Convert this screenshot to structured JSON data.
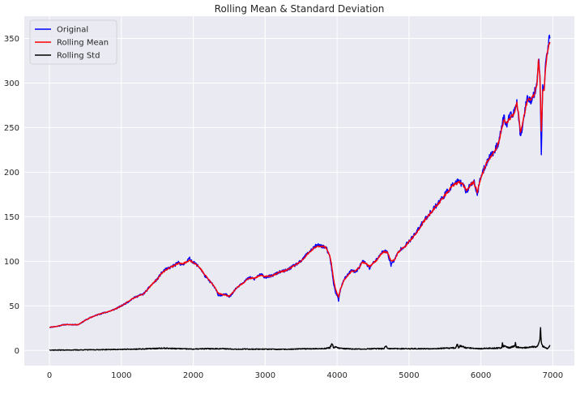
{
  "chart_data": {
    "type": "line",
    "title": "Rolling Mean & Standard Deviation",
    "xlabel": "",
    "ylabel": "",
    "xlim": [
      -350,
      7300
    ],
    "ylim": [
      -17,
      375
    ],
    "xticks": [
      0,
      1000,
      2000,
      3000,
      4000,
      5000,
      6000,
      7000
    ],
    "yticks": [
      0,
      50,
      100,
      150,
      200,
      250,
      300,
      350
    ],
    "grid": true,
    "legend_position": "top-left",
    "colors": {
      "plot_bg": "#eaeaf2",
      "grid": "#ffffff",
      "text": "#262626"
    },
    "series": [
      {
        "name": "Original",
        "color": "#0000ff",
        "x": [
          0,
          100,
          200,
          300,
          400,
          500,
          600,
          700,
          800,
          900,
          1000,
          1100,
          1150,
          1200,
          1250,
          1300,
          1350,
          1400,
          1450,
          1500,
          1550,
          1600,
          1650,
          1700,
          1750,
          1800,
          1850,
          1900,
          1950,
          2000,
          2050,
          2100,
          2150,
          2200,
          2250,
          2300,
          2350,
          2400,
          2450,
          2500,
          2550,
          2600,
          2650,
          2700,
          2750,
          2800,
          2850,
          2900,
          2950,
          3000,
          3100,
          3200,
          3300,
          3400,
          3500,
          3600,
          3700,
          3750,
          3800,
          3850,
          3900,
          3920,
          3950,
          3980,
          4000,
          4020,
          4050,
          4100,
          4150,
          4200,
          4250,
          4300,
          4350,
          4400,
          4450,
          4500,
          4550,
          4600,
          4650,
          4700,
          4750,
          4800,
          4850,
          4900,
          4950,
          5000,
          5100,
          5200,
          5300,
          5400,
          5500,
          5550,
          5600,
          5650,
          5700,
          5750,
          5800,
          5850,
          5900,
          5950,
          6000,
          6050,
          6100,
          6150,
          6200,
          6250,
          6300,
          6320,
          6350,
          6400,
          6450,
          6500,
          6520,
          6550,
          6600,
          6650,
          6700,
          6750,
          6780,
          6800,
          6820,
          6840,
          6860,
          6880,
          6900,
          6920,
          6940,
          6960
        ],
        "y": [
          26,
          27,
          29,
          29,
          29,
          34,
          38,
          41,
          43,
          46,
          50,
          55,
          58,
          60,
          62,
          63,
          67,
          72,
          76,
          80,
          86,
          90,
          92,
          94,
          96,
          99,
          95,
          100,
          103,
          99,
          96,
          92,
          85,
          80,
          76,
          70,
          62,
          62,
          63,
          60,
          65,
          70,
          74,
          77,
          80,
          82,
          80,
          84,
          85,
          82,
          84,
          88,
          90,
          95,
          100,
          110,
          117,
          118,
          117,
          115,
          104,
          95,
          75,
          65,
          62,
          56,
          70,
          80,
          85,
          90,
          88,
          92,
          100,
          98,
          92,
          98,
          102,
          108,
          112,
          110,
          96,
          102,
          110,
          115,
          118,
          122,
          132,
          145,
          155,
          165,
          175,
          180,
          185,
          188,
          190,
          185,
          178,
          186,
          190,
          175,
          195,
          205,
          215,
          220,
          225,
          235,
          255,
          262,
          252,
          262,
          265,
          280,
          265,
          238,
          265,
          285,
          280,
          290,
          300,
          330,
          310,
          222,
          300,
          290,
          320,
          335,
          345,
          350
        ]
      },
      {
        "name": "Rolling Mean",
        "color": "#ff0000",
        "x": [
          0,
          100,
          200,
          300,
          400,
          500,
          600,
          700,
          800,
          900,
          1000,
          1100,
          1150,
          1200,
          1250,
          1300,
          1350,
          1400,
          1450,
          1500,
          1550,
          1600,
          1650,
          1700,
          1750,
          1800,
          1850,
          1900,
          1950,
          2000,
          2050,
          2100,
          2150,
          2200,
          2250,
          2300,
          2350,
          2400,
          2450,
          2500,
          2550,
          2600,
          2650,
          2700,
          2750,
          2800,
          2850,
          2900,
          2950,
          3000,
          3100,
          3200,
          3300,
          3400,
          3500,
          3600,
          3700,
          3750,
          3800,
          3850,
          3900,
          3920,
          3950,
          3980,
          4000,
          4020,
          4050,
          4100,
          4150,
          4200,
          4250,
          4300,
          4350,
          4400,
          4450,
          4500,
          4550,
          4600,
          4650,
          4700,
          4750,
          4800,
          4850,
          4900,
          4950,
          5000,
          5100,
          5200,
          5300,
          5400,
          5500,
          5550,
          5600,
          5650,
          5700,
          5750,
          5800,
          5850,
          5900,
          5950,
          6000,
          6050,
          6100,
          6150,
          6200,
          6250,
          6300,
          6320,
          6350,
          6400,
          6450,
          6500,
          6520,
          6550,
          6600,
          6650,
          6700,
          6750,
          6780,
          6800,
          6820,
          6840,
          6860,
          6880,
          6900,
          6920,
          6940,
          6960
        ],
        "y": [
          26,
          27,
          29,
          29,
          29,
          34,
          38,
          41,
          43,
          46,
          50,
          55,
          58,
          60,
          62,
          63,
          67,
          72,
          76,
          80,
          86,
          89,
          92,
          94,
          96,
          98,
          97,
          99,
          101,
          99,
          96,
          92,
          86,
          81,
          76,
          71,
          64,
          63,
          62,
          61,
          65,
          70,
          73,
          76,
          80,
          81,
          81,
          83,
          84,
          83,
          84,
          88,
          90,
          95,
          100,
          109,
          116,
          117,
          117,
          115,
          106,
          98,
          80,
          68,
          64,
          60,
          70,
          79,
          84,
          89,
          89,
          92,
          99,
          98,
          94,
          98,
          101,
          107,
          111,
          110,
          100,
          102,
          110,
          114,
          117,
          122,
          131,
          144,
          154,
          164,
          174,
          179,
          184,
          187,
          189,
          186,
          180,
          185,
          189,
          178,
          194,
          204,
          214,
          219,
          224,
          234,
          252,
          258,
          255,
          260,
          264,
          277,
          268,
          245,
          263,
          282,
          281,
          289,
          298,
          325,
          310,
          245,
          290,
          292,
          317,
          332,
          342,
          346
        ]
      },
      {
        "name": "Rolling Std",
        "color": "#000000",
        "x": [
          0,
          200,
          400,
          600,
          800,
          1000,
          1200,
          1400,
          1600,
          1800,
          2000,
          2200,
          2400,
          2600,
          2800,
          3000,
          3200,
          3400,
          3600,
          3800,
          3900,
          3930,
          3950,
          3980,
          4000,
          4100,
          4300,
          4500,
          4650,
          4680,
          4700,
          4900,
          5100,
          5300,
          5500,
          5650,
          5670,
          5690,
          5710,
          5800,
          5900,
          6000,
          6100,
          6200,
          6290,
          6300,
          6310,
          6320,
          6400,
          6470,
          6480,
          6490,
          6500,
          6550,
          6600,
          6700,
          6780,
          6800,
          6820,
          6830,
          6840,
          6850,
          6860,
          6880,
          6900,
          6920,
          6940,
          6960
        ],
        "y": [
          0.5,
          0.5,
          0.6,
          0.8,
          1,
          1.2,
          1.5,
          2,
          2.5,
          2,
          1.5,
          2,
          2,
          1.5,
          1.5,
          1.5,
          1.2,
          1.5,
          2,
          2,
          3,
          8,
          3,
          4,
          3,
          2,
          1.5,
          2,
          2,
          5,
          2,
          2,
          2,
          2,
          2.5,
          3,
          7,
          3,
          5,
          3,
          2.5,
          2,
          2.5,
          2.5,
          3,
          8,
          4,
          5,
          3,
          5,
          9,
          4,
          4,
          3,
          3,
          4,
          4,
          8,
          12,
          25,
          10,
          6,
          5,
          4,
          3,
          2,
          3,
          6
        ]
      }
    ]
  }
}
